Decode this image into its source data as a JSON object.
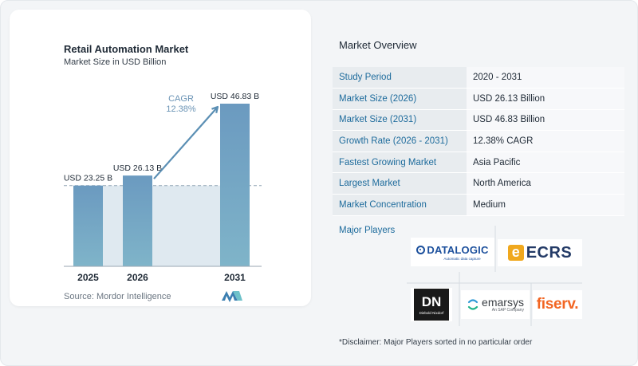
{
  "chart": {
    "title": "Retail Automation Market",
    "subtitle": "Market Size in USD Billion",
    "source": "Source:  Mordor Intelligence",
    "cagr_label": "CAGR",
    "cagr_value": "12.38%"
  },
  "chart_data": {
    "type": "bar",
    "categories": [
      "2025",
      "2026",
      "2031"
    ],
    "values": [
      23.25,
      26.13,
      46.83
    ],
    "data_labels": [
      "USD 23.25 B",
      "USD 26.13 B",
      "USD 46.83 B"
    ],
    "title": "Retail Automation Market",
    "subtitle": "Market Size in USD Billion",
    "ylim": [
      0,
      46.83
    ],
    "grid": false,
    "annotation": "CAGR 12.38%",
    "colors": {
      "bar_top": "#6b9ac0",
      "bar_bottom": "#7fb4c9",
      "arrow": "#5b8fb4",
      "band": "#dfe9f0"
    }
  },
  "overview": {
    "title": "Market Overview",
    "rows": [
      {
        "key": "Study Period",
        "value": "2020 - 2031"
      },
      {
        "key": "Market Size (2026)",
        "value": "USD 26.13 Billion"
      },
      {
        "key": "Market Size (2031)",
        "value": "USD 46.83 Billion"
      },
      {
        "key": "Growth Rate (2026 - 2031)",
        "value": "12.38% CAGR"
      },
      {
        "key": "Fastest Growing Market",
        "value": "Asia Pacific"
      },
      {
        "key": "Largest Market",
        "value": "North America"
      },
      {
        "key": "Market Concentration",
        "value": "Medium"
      }
    ]
  },
  "players": {
    "title": "Major Players",
    "datalogic": {
      "name": "DATALOGIC",
      "tagline": "Automatic data capture"
    },
    "ecrs": {
      "letter": "e",
      "name": "ECRS"
    },
    "diebold": {
      "mark": "DN",
      "name": "Diebold Nixdorf"
    },
    "emarsys": {
      "name": "emarsys",
      "tagline": "An SAP Company"
    },
    "fiserv": {
      "name": "fiserv."
    }
  },
  "disclaimer": "*Disclaimer: Major Players sorted in no particular order"
}
